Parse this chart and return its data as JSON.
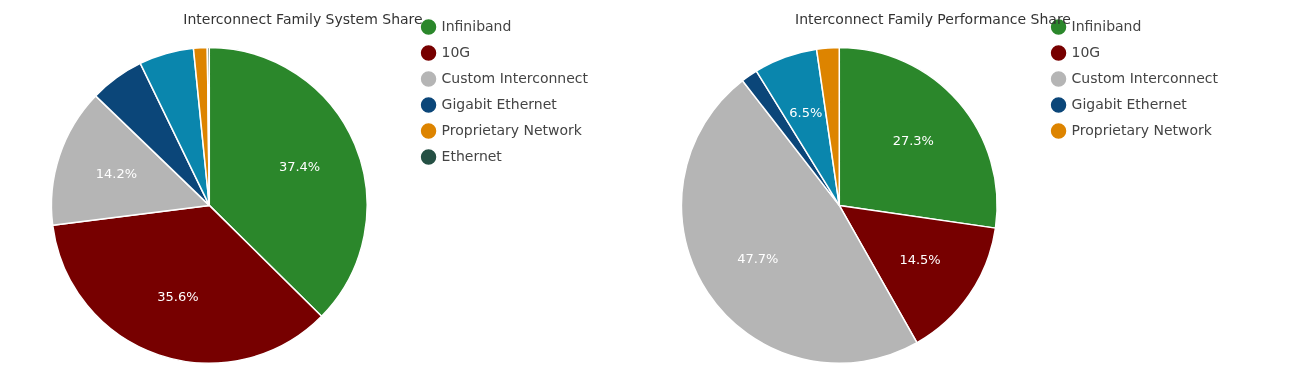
{
  "chart_data": [
    {
      "type": "pie",
      "title": "Interconnect Family System Share",
      "categories": [
        "Infiniband",
        "10G",
        "Custom Interconnect",
        "Gigabit Ethernet",
        null,
        "Proprietary Network",
        "Ethernet"
      ],
      "values": [
        37.4,
        35.6,
        14.2,
        5.6,
        5.6,
        1.4,
        0.2
      ],
      "colors": [
        "#2b872b",
        "#770000",
        "#b5b5b5",
        "#0b4679",
        "#0a86ad",
        "#dd8400",
        "#255044"
      ],
      "value_labels": [
        "37.4%",
        "35.6%",
        "14.2%",
        null,
        null,
        null,
        null
      ],
      "legend": "right"
    },
    {
      "type": "pie",
      "title": "Interconnect Family Performance Share",
      "categories": [
        "Infiniband",
        "10G",
        "Custom Interconnect",
        "Gigabit Ethernet",
        null,
        "Proprietary Network"
      ],
      "values": [
        27.3,
        14.5,
        47.7,
        1.7,
        6.5,
        2.3
      ],
      "colors": [
        "#2b872b",
        "#770000",
        "#b5b5b5",
        "#0b4679",
        "#0a86ad",
        "#dd8400"
      ],
      "value_labels": [
        "27.3%",
        "14.5%",
        "47.7%",
        null,
        "6.5%",
        null
      ],
      "legend": "right"
    }
  ]
}
